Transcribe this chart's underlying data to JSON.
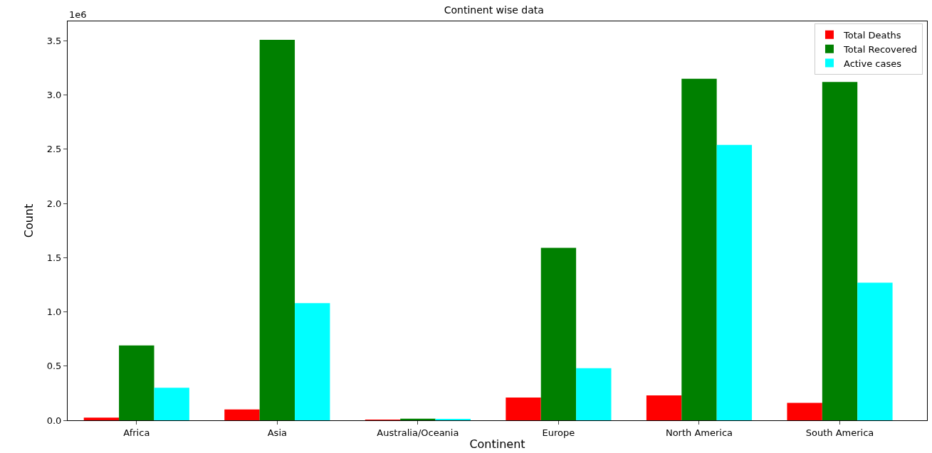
{
  "chart_data": {
    "type": "bar",
    "title": "Continent wise data",
    "xlabel": "Continent",
    "ylabel": "Count",
    "annotations": [
      "1e6"
    ],
    "categories": [
      "Africa",
      "Asia",
      "Australia/Oceania",
      "Europe",
      "North America",
      "South America"
    ],
    "series": [
      {
        "name": "Total Deaths",
        "color": "#ff0000",
        "values": [
          0.025,
          0.1,
          0.001,
          0.21,
          0.23,
          0.16
        ]
      },
      {
        "name": "Total Recovered",
        "color": "#008000",
        "values": [
          0.69,
          3.51,
          0.015,
          1.59,
          3.15,
          3.12
        ]
      },
      {
        "name": "Active cases",
        "color": "#00ffff",
        "values": [
          0.3,
          1.08,
          0.012,
          0.48,
          2.54,
          1.27
        ]
      }
    ],
    "ylim": [
      0,
      3.68
    ],
    "yticks": [
      {
        "value": 0,
        "label": "0.0"
      },
      0.5,
      {
        "value": 1,
        "label": "1.0"
      },
      1.5,
      {
        "value": 2,
        "label": "2.0"
      },
      2.5,
      {
        "value": 3,
        "label": "3.0"
      },
      3.5
    ],
    "legend": "top right"
  }
}
